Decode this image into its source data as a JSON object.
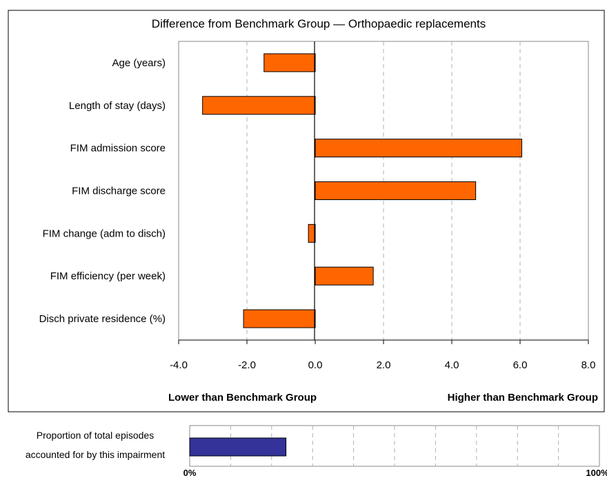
{
  "chart_data": [
    {
      "type": "bar",
      "orientation": "horizontal",
      "title": "Difference from  Benchmark Group — Orthopaedic replacements",
      "categories": [
        "Age (years)",
        "Length of stay (days)",
        "FIM admission score",
        "FIM discharge score",
        "FIM change (adm to disch)",
        "FIM efficiency (per week)",
        "Disch private residence (%)"
      ],
      "values": [
        -1.5,
        -3.3,
        6.05,
        4.7,
        -0.2,
        1.7,
        -2.1
      ],
      "xlim": [
        -4,
        8
      ],
      "xticks": [
        -4,
        -2,
        0,
        2,
        4,
        6,
        8
      ],
      "xtick_labels": [
        "-4.0",
        "-2.0",
        "0.0",
        "2.0",
        "4.0",
        "6.0",
        "8.0"
      ],
      "lower_label": "Lower than Benchmark Group",
      "higher_label": "Higher than Benchmark Group",
      "grid": "vertical dashed",
      "bar_color": "#ff6600"
    },
    {
      "type": "bar",
      "orientation": "horizontal",
      "label_lines": [
        "Proportion of total episodes",
        "accounted for by  this impairment"
      ],
      "value_percent": 23.5,
      "xlim": [
        0,
        100
      ],
      "xtick_labels": [
        "0%",
        "100%"
      ],
      "grid": "vertical dashed",
      "bar_color": "#333399"
    }
  ]
}
